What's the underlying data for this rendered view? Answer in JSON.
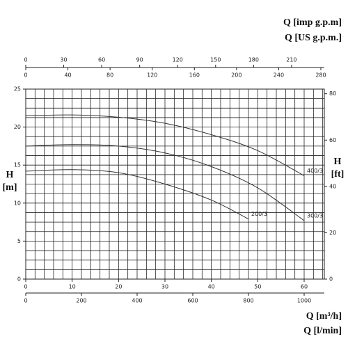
{
  "chart_data": {
    "type": "line",
    "y_label": "H",
    "y_unit": "[m]",
    "y2_label": "H",
    "y2_unit": "[ft]",
    "ylim": [
      0,
      25
    ],
    "yticks": [
      0,
      5,
      10,
      15,
      20,
      25
    ],
    "y2lim": [
      0,
      82.02
    ],
    "y2ticks": [
      0,
      20,
      40,
      60,
      80
    ],
    "y_minor_step": 1.25,
    "x_minor_step": 2,
    "x_axes": [
      {
        "label": "Q [m³/h]",
        "position": "bottom",
        "lim": [
          0,
          64.35
        ],
        "ticks": [
          0,
          10,
          20,
          30,
          40,
          50,
          60
        ]
      },
      {
        "label": "Q [l/min]",
        "position": "bottom",
        "lim": [
          0,
          1072.5
        ],
        "ticks": [
          0,
          200,
          400,
          600,
          800,
          1000
        ]
      },
      {
        "label": "Q [imp g.p.m]",
        "position": "top",
        "lim": [
          0,
          235.9
        ],
        "ticks": [
          0,
          30,
          60,
          90,
          120,
          150,
          180,
          210
        ]
      },
      {
        "label": "Q [US g.p.m.]",
        "position": "top",
        "lim": [
          0,
          283.3
        ],
        "ticks": [
          0,
          40,
          80,
          120,
          160,
          200,
          240,
          280
        ]
      }
    ],
    "series": [
      {
        "name": "400/3",
        "color": "#333333",
        "x": [
          0,
          10,
          20,
          30,
          40,
          50,
          60
        ],
        "values": [
          21.5,
          21.6,
          21.3,
          20.5,
          19,
          16.9,
          13.6
        ]
      },
      {
        "name": "300/3",
        "color": "#333333",
        "x": [
          0,
          10,
          20,
          30,
          40,
          50,
          60
        ],
        "values": [
          17.5,
          17.7,
          17.5,
          16.6,
          14.8,
          12,
          7.7
        ]
      },
      {
        "name": "200/3",
        "color": "#333333",
        "x": [
          0,
          10,
          20,
          30,
          40,
          48
        ],
        "values": [
          14.2,
          14.4,
          14,
          12.5,
          10.4,
          7.9
        ]
      }
    ]
  }
}
